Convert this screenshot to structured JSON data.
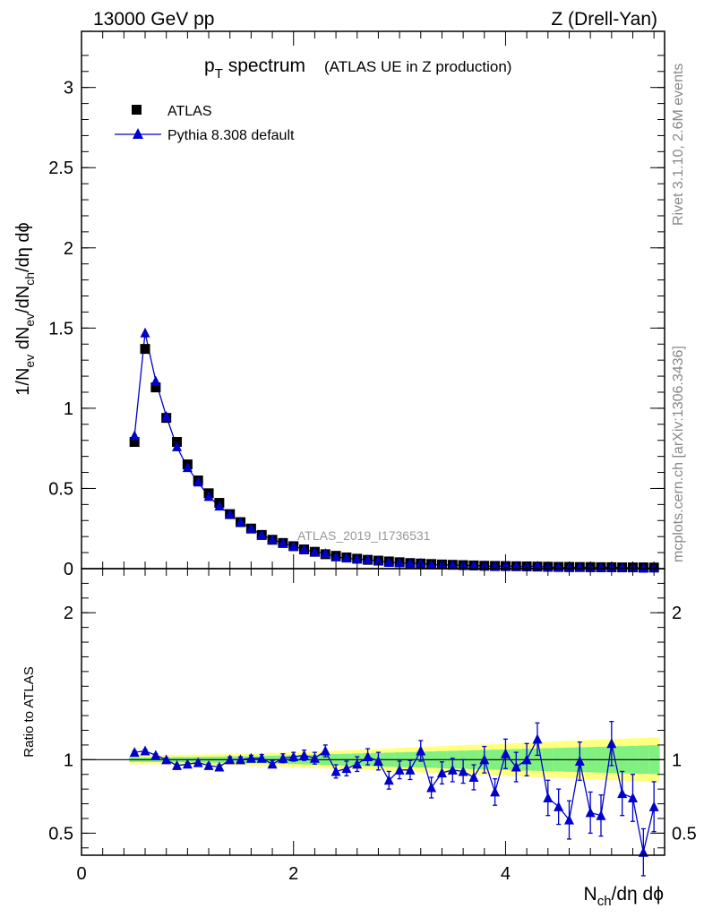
{
  "header": {
    "energy": "13000 GeV pp",
    "process": "Z (Drell-Yan)",
    "rivet": "Rivet 3.1.10,  2.6M events",
    "mcplots": "mcplots.cern.ch [arXiv:1306.3436]",
    "analysis": "ATLAS_2019_I1736531"
  },
  "colors": {
    "data": "#000000",
    "mc": "#0000cc",
    "band_inner": "#80f080",
    "band_outer": "#ffff80"
  },
  "chart_data": [
    {
      "type": "scatter",
      "title_main": "p",
      "title_sub": "T",
      "title_rest": " spectrum",
      "title_paren": "(ATLAS UE in Z production)",
      "ylabel": "1/N_ev dN_ev/dN_ch/dη dϕ",
      "ylim": [
        0,
        3.35
      ],
      "xlim": [
        0,
        5.5
      ],
      "yticks": [
        "0",
        "0.5",
        "1",
        "1.5",
        "2",
        "2.5",
        "3"
      ],
      "legend": {
        "placement": "top-left",
        "entries": [
          "ATLAS",
          "Pythia 8.308 default"
        ]
      },
      "series": [
        {
          "name": "ATLAS",
          "marker": "square",
          "x": [
            0.5,
            0.6,
            0.7,
            0.8,
            0.9,
            1.0,
            1.1,
            1.2,
            1.3,
            1.4,
            1.5,
            1.6,
            1.7,
            1.8,
            1.9,
            2.0,
            2.1,
            2.2,
            2.3,
            2.4,
            2.5,
            2.6,
            2.7,
            2.8,
            2.9,
            3.0,
            3.1,
            3.2,
            3.3,
            3.4,
            3.5,
            3.6,
            3.7,
            3.8,
            3.9,
            4.0,
            4.1,
            4.2,
            4.3,
            4.4,
            4.5,
            4.6,
            4.7,
            4.8,
            4.9,
            5.0,
            5.1,
            5.2,
            5.3,
            5.4
          ],
          "y": [
            0.79,
            1.37,
            1.13,
            0.94,
            0.79,
            0.65,
            0.55,
            0.47,
            0.41,
            0.34,
            0.29,
            0.25,
            0.21,
            0.18,
            0.16,
            0.14,
            0.12,
            0.105,
            0.09,
            0.08,
            0.07,
            0.062,
            0.055,
            0.05,
            0.045,
            0.04,
            0.035,
            0.032,
            0.029,
            0.026,
            0.024,
            0.022,
            0.02,
            0.018,
            0.017,
            0.016,
            0.015,
            0.014,
            0.013,
            0.012,
            0.011,
            0.011,
            0.01,
            0.01,
            0.009,
            0.009,
            0.008,
            0.008,
            0.008,
            0.007
          ]
        },
        {
          "name": "Pythia 8.308 default",
          "marker": "triangle",
          "x": [
            0.5,
            0.6,
            0.7,
            0.8,
            0.9,
            1.0,
            1.1,
            1.2,
            1.3,
            1.4,
            1.5,
            1.6,
            1.7,
            1.8,
            1.9,
            2.0,
            2.1,
            2.2,
            2.3,
            2.4,
            2.5,
            2.6,
            2.7,
            2.8,
            2.9,
            3.0,
            3.1,
            3.2,
            3.3,
            3.4,
            3.5,
            3.6,
            3.7,
            3.8,
            3.9,
            4.0,
            4.1,
            4.2,
            4.3,
            4.4,
            4.5,
            4.6,
            4.7,
            4.8,
            4.9,
            5.0,
            5.1,
            5.2,
            5.3,
            5.4
          ],
          "y": [
            0.83,
            1.47,
            1.17,
            0.95,
            0.76,
            0.63,
            0.54,
            0.45,
            0.39,
            0.34,
            0.29,
            0.25,
            0.21,
            0.18,
            0.16,
            0.14,
            0.12,
            0.104,
            0.095,
            0.073,
            0.066,
            0.06,
            0.056,
            0.048,
            0.039,
            0.037,
            0.033,
            0.034,
            0.024,
            0.024,
            0.022,
            0.02,
            0.018,
            0.018,
            0.013,
            0.017,
            0.014,
            0.014,
            0.016,
            0.009,
            0.008,
            0.006,
            0.01,
            0.006,
            0.006,
            0.011,
            0.006,
            0.006,
            0.003,
            0.005
          ]
        }
      ]
    },
    {
      "type": "scatter",
      "ylabel": "Ratio to ATLAS",
      "xlabel": "N_ch/dη dϕ",
      "ylim": [
        0.35,
        2.3
      ],
      "xlim": [
        0,
        5.5
      ],
      "xticks": [
        "0",
        "2",
        "4"
      ],
      "yticks": [
        "0.5",
        "1",
        "2"
      ],
      "reference_line": 1,
      "band_x": [
        0.5,
        0.6,
        0.7,
        0.8,
        0.9,
        1.0,
        1.1,
        1.2,
        1.3,
        1.4,
        1.5,
        1.6,
        1.7,
        1.8,
        1.9,
        2.0,
        2.1,
        2.2,
        2.3,
        2.4,
        2.5,
        2.6,
        2.7,
        2.8,
        2.9,
        3.0,
        3.1,
        3.2,
        3.3,
        3.4,
        3.5,
        3.6,
        3.7,
        3.8,
        3.9,
        4.0,
        4.1,
        4.2,
        4.3,
        4.4,
        4.5,
        4.6,
        4.7,
        4.8,
        4.9,
        5.0,
        5.1,
        5.2,
        5.3,
        5.4
      ],
      "band_inner": [
        0.015,
        0.015,
        0.016,
        0.017,
        0.018,
        0.018,
        0.019,
        0.02,
        0.021,
        0.022,
        0.023,
        0.024,
        0.025,
        0.027,
        0.029,
        0.03,
        0.032,
        0.034,
        0.036,
        0.038,
        0.04,
        0.042,
        0.044,
        0.046,
        0.048,
        0.05,
        0.052,
        0.054,
        0.056,
        0.058,
        0.06,
        0.062,
        0.064,
        0.066,
        0.068,
        0.07,
        0.072,
        0.074,
        0.076,
        0.078,
        0.08,
        0.082,
        0.084,
        0.086,
        0.088,
        0.09,
        0.092,
        0.094,
        0.096,
        0.098
      ],
      "band_outer": [
        0.03,
        0.03,
        0.031,
        0.032,
        0.033,
        0.034,
        0.035,
        0.036,
        0.037,
        0.038,
        0.04,
        0.042,
        0.044,
        0.046,
        0.048,
        0.05,
        0.053,
        0.056,
        0.059,
        0.062,
        0.065,
        0.068,
        0.071,
        0.074,
        0.077,
        0.08,
        0.083,
        0.086,
        0.089,
        0.092,
        0.095,
        0.098,
        0.101,
        0.104,
        0.107,
        0.11,
        0.113,
        0.116,
        0.119,
        0.122,
        0.125,
        0.128,
        0.131,
        0.134,
        0.137,
        0.14,
        0.143,
        0.146,
        0.149,
        0.152
      ],
      "series": [
        {
          "name": "Pythia 8.308 default",
          "x": [
            0.5,
            0.6,
            0.7,
            0.8,
            0.9,
            1.0,
            1.1,
            1.2,
            1.3,
            1.4,
            1.5,
            1.6,
            1.7,
            1.8,
            1.9,
            2.0,
            2.1,
            2.2,
            2.3,
            2.4,
            2.5,
            2.6,
            2.7,
            2.8,
            2.9,
            3.0,
            3.1,
            3.2,
            3.3,
            3.4,
            3.5,
            3.6,
            3.7,
            3.8,
            3.9,
            4.0,
            4.1,
            4.2,
            4.3,
            4.4,
            4.5,
            4.6,
            4.7,
            4.8,
            4.9,
            5.0,
            5.1,
            5.2,
            5.3,
            5.4
          ],
          "y": [
            1.05,
            1.06,
            1.03,
            1.0,
            0.96,
            0.97,
            0.98,
            0.96,
            0.95,
            1.0,
            1.0,
            1.01,
            1.01,
            0.97,
            1.01,
            1.02,
            1.03,
            1.01,
            1.06,
            0.92,
            0.94,
            0.97,
            1.02,
            0.99,
            0.86,
            0.93,
            0.93,
            1.06,
            0.81,
            0.91,
            0.93,
            0.92,
            0.88,
            1.0,
            0.78,
            1.04,
            0.95,
            1.0,
            1.14,
            0.74,
            0.68,
            0.59,
            0.99,
            0.64,
            0.62,
            1.11,
            0.77,
            0.74,
            0.37,
            0.68
          ],
          "err": [
            0.01,
            0.01,
            0.01,
            0.01,
            0.01,
            0.01,
            0.01,
            0.015,
            0.015,
            0.02,
            0.02,
            0.02,
            0.025,
            0.025,
            0.03,
            0.03,
            0.035,
            0.04,
            0.04,
            0.045,
            0.05,
            0.05,
            0.055,
            0.06,
            0.06,
            0.06,
            0.065,
            0.07,
            0.07,
            0.075,
            0.08,
            0.08,
            0.085,
            0.09,
            0.09,
            0.1,
            0.1,
            0.11,
            0.11,
            0.12,
            0.12,
            0.13,
            0.13,
            0.14,
            0.14,
            0.15,
            0.15,
            0.16,
            0.16,
            0.17
          ]
        }
      ]
    }
  ]
}
